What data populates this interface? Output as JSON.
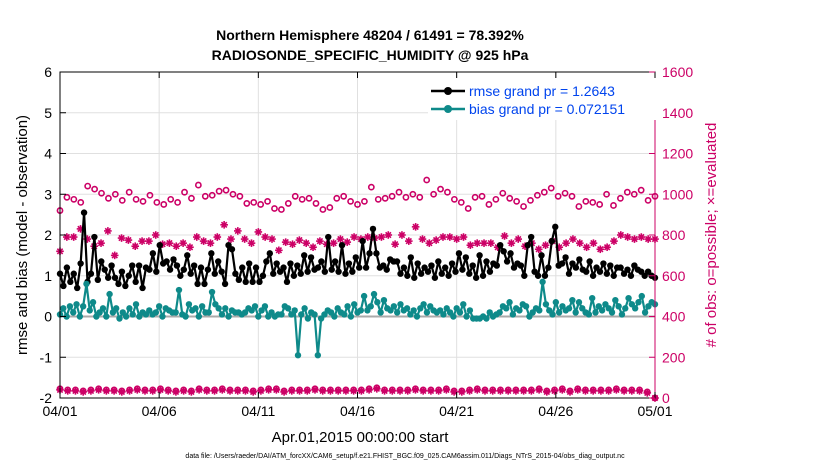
{
  "chart_data": {
    "type": "line",
    "title_line1": "Northern Hemisphere 48204 / 61491 = 78.392%",
    "title_line2": "RADIOSONDE_SPECIFIC_HUMIDITY @ 925 hPa",
    "xlabel": "Apr.01,2015 00:00:00 start",
    "ylabel": "rmse and bias (model - observation)",
    "ylabel_right": "# of obs: o=possible; ×=evaluated",
    "footer": "data file: /Users/raeder/DAI/ATM_forcXX/CAM6_setup/f.e21.FHIST_BGC.f09_025.CAM6assim.011/Diags_NTrS_2015-04/obs_diag_output.nc",
    "xlim": [
      0,
      30
    ],
    "ylim": [
      -2,
      6
    ],
    "ylim_right": [
      0,
      1600
    ],
    "x_ticks": [
      0,
      5,
      10,
      15,
      20,
      25,
      30
    ],
    "x_tick_labels": [
      "04/01",
      "04/06",
      "04/11",
      "04/16",
      "04/21",
      "04/26",
      "05/01"
    ],
    "y_ticks": [
      -2,
      -1,
      0,
      1,
      2,
      3,
      4,
      5,
      6
    ],
    "y_ticks_right": [
      0,
      200,
      400,
      600,
      800,
      1000,
      1200,
      1400,
      1600
    ],
    "colors": {
      "rmse": "#000000",
      "bias": "#0e8a8a",
      "obs": "#cc0066",
      "zero_line": "#aaaaaa",
      "legend_text": "#0044ee"
    },
    "legend_position": "top-right",
    "series": [
      {
        "name": "rmse grand pr = 1.2643",
        "axis": "left",
        "values": [
          1.05,
          0.75,
          1.2,
          0.85,
          1.05,
          0.7,
          1.3,
          2.55,
          0.85,
          1.05,
          1.95,
          0.9,
          1.35,
          1.15,
          0.95,
          1.25,
          0.95,
          0.8,
          1.1,
          0.75,
          1.0,
          1.25,
          0.85,
          1.25,
          0.7,
          1.2,
          1.15,
          1.55,
          1.1,
          1.75,
          1.3,
          1.35,
          1.15,
          1.4,
          1.25,
          1.0,
          1.15,
          1.5,
          1.05,
          1.25,
          0.8,
          1.2,
          0.8,
          1.15,
          1.55,
          1.05,
          1.35,
          1.1,
          0.8,
          1.75,
          1.65,
          1.05,
          0.9,
          1.2,
          0.85,
          1.3,
          0.85,
          1.2,
          0.85,
          1.0,
          1.35,
          1.55,
          1.05,
          1.3,
          1.1,
          1.2,
          0.85,
          1.3,
          1.0,
          1.25,
          1.05,
          1.5,
          1.1,
          1.45,
          1.15,
          1.2,
          1.35,
          1.1,
          1.95,
          1.15,
          1.35,
          1.1,
          1.75,
          1.05,
          1.3,
          1.1,
          1.45,
          1.2,
          1.85,
          1.2,
          1.55,
          2.15,
          1.55,
          1.2,
          1.25,
          1.15,
          1.4,
          1.35,
          1.35,
          1.05,
          1.2,
          1.0,
          1.45,
          0.95,
          1.3,
          1.05,
          1.2,
          1.1,
          1.25,
          0.95,
          1.35,
          1.05,
          1.2,
          1.0,
          1.3,
          1.1,
          1.55,
          1.15,
          1.45,
          1.05,
          1.25,
          0.95,
          1.5,
          1.0,
          1.35,
          1.1,
          1.3,
          1.25,
          1.75,
          1.6,
          1.35,
          1.55,
          1.2,
          1.3,
          1.25,
          1.0,
          1.75,
          1.95,
          1.1,
          1.0,
          1.5,
          1.0,
          1.2,
          1.85,
          2.2,
          1.25,
          1.3,
          1.45,
          1.05,
          1.3,
          1.2,
          1.4,
          1.15,
          1.1,
          1.35,
          1.0,
          1.2,
          1.1,
          1.3,
          1.05,
          1.25,
          1.0,
          1.2,
          1.2,
          1.05,
          1.15,
          1.0,
          1.25,
          1.15,
          1.1,
          1.0,
          1.1,
          1.0,
          0.95
        ]
      },
      {
        "name": "bias grand pr = 0.072151",
        "axis": "left",
        "values": [
          0.05,
          0.2,
          0.0,
          0.25,
          0.1,
          0.3,
          0.0,
          0.25,
          0.8,
          0.15,
          0.35,
          0.0,
          0.1,
          0.2,
          0.0,
          0.55,
          0.1,
          0.2,
          -0.05,
          0.1,
          0.0,
          0.2,
          0.05,
          0.3,
          0.0,
          0.1,
          0.05,
          0.15,
          0.05,
          0.1,
          0.25,
          0.0,
          0.2,
          0.15,
          0.1,
          0.1,
          0.65,
          0.05,
          0.0,
          0.3,
          0.15,
          0.2,
          0.0,
          0.25,
          0.1,
          0.1,
          0.6,
          0.3,
          0.2,
          0.05,
          0.2,
          0.0,
          0.15,
          0.1,
          0.1,
          0.05,
          0.1,
          0.2,
          0.15,
          0.25,
          0.0,
          0.15,
          0.25,
          0.0,
          0.1,
          0.0,
          0.05,
          0.05,
          0.25,
          0.2,
          0.05,
          0.15,
          -0.95,
          0.05,
          0.2,
          -0.05,
          0.1,
          0.05,
          -0.95,
          -0.05,
          0.05,
          0.15,
          0.1,
          0.0,
          0.2,
          0.1,
          0.05,
          0.25,
          0.0,
          0.3,
          0.1,
          0.15,
          0.5,
          0.15,
          0.25,
          0.55,
          0.35,
          0.1,
          0.4,
          0.2,
          0.15,
          0.25,
          0.1,
          0.3,
          0.15,
          0.2,
          0.05,
          0.15,
          0.0,
          0.2,
          0.3,
          0.1,
          0.25,
          0.15,
          0.1,
          0.15,
          0.05,
          0.2,
          0.1,
          0.0,
          0.2,
          0.1,
          0.3,
          0.0,
          0.15,
          -0.05,
          -0.05,
          -0.05,
          0.0,
          -0.05,
          0.1,
          0.0,
          0.05,
          0.1,
          0.25,
          0.2,
          0.35,
          0.05,
          0.2,
          0.15,
          0.3,
          0.25,
          0.0,
          0.1,
          0.2,
          0.15,
          0.85,
          0.3,
          0.15,
          0.05,
          0.35,
          0.1,
          0.25,
          0.15,
          0.2,
          0.4,
          0.1,
          0.35,
          0.2,
          0.1,
          0.05,
          0.45,
          0.1,
          0.25,
          0.15,
          0.3,
          0.2,
          0.1,
          0.4,
          0.25,
          0.05,
          0.2,
          0.45,
          0.3,
          0.2,
          0.35,
          0.5,
          0.1,
          0.25,
          0.35,
          0.3
        ]
      },
      {
        "name": "possible",
        "axis": "right",
        "marker": "o",
        "values": [
          920,
          985,
          975,
          960,
          1040,
          1025,
          1005,
          980,
          1000,
          970,
          1010,
          975,
          965,
          995,
          960,
          950,
          975,
          960,
          1010,
          980,
          1045,
          990,
          995,
          1015,
          1020,
          1000,
          990,
          955,
          960,
          950,
          965,
          930,
          925,
          955,
          990,
          975,
          980,
          955,
          925,
          935,
          980,
          990,
          965,
          950,
          965,
          1035,
          975,
          980,
          990,
          1010,
          985,
          1000,
          985,
          1070,
          1000,
          1025,
          1010,
          975,
          960,
          930,
          985,
          990,
          950,
          975,
          1005,
          980,
          965,
          940,
          970,
          995,
          1010,
          1030,
          990,
          1005,
          990,
          940,
          965,
          960,
          950,
          1000,
          945,
          980,
          1010,
          1000,
          1020,
          970,
          990
        ]
      },
      {
        "name": "evaluated",
        "axis": "right",
        "marker": "x",
        "values": [
          720,
          790,
          790,
          830,
          780,
          745,
          760,
          820,
          700,
          785,
          775,
          745,
          770,
          770,
          800,
          755,
          760,
          745,
          760,
          740,
          790,
          770,
          760,
          790,
          850,
          780,
          820,
          780,
          760,
          815,
          790,
          780,
          725,
          765,
          755,
          775,
          760,
          740,
          770,
          755,
          760,
          780,
          765,
          790,
          780,
          790,
          785,
          790,
          800,
          755,
          800,
          770,
          840,
          780,
          760,
          775,
          790,
          790,
          780,
          790,
          750,
          760,
          760,
          760,
          740,
          795,
          760,
          780,
          745,
          760,
          730,
          750,
          770,
          740,
          760,
          780,
          760,
          740,
          760,
          730,
          740,
          770,
          800,
          790,
          780,
          790,
          780,
          780
        ]
      },
      {
        "name": "possible-low",
        "axis": "right",
        "marker": "o",
        "values": [
          45,
          40,
          40,
          35,
          40,
          45,
          40,
          40,
          35,
          40,
          45,
          40,
          40,
          45,
          40,
          35,
          40,
          35,
          45,
          40,
          40,
          45,
          40,
          40,
          40,
          35,
          40,
          45,
          45,
          35,
          40,
          40,
          40,
          45,
          40,
          40,
          40,
          40,
          40,
          40,
          45,
          50,
          40,
          40,
          40,
          40,
          45,
          40,
          40,
          40,
          45,
          35,
          35,
          40,
          45,
          40,
          40,
          40,
          40,
          40,
          40,
          40,
          45,
          35,
          40,
          45,
          35,
          45,
          40,
          40,
          40,
          40,
          45,
          40,
          40,
          40,
          30,
          0
        ]
      },
      {
        "name": "evaluated-low",
        "axis": "right",
        "marker": "x",
        "values": [
          40,
          35,
          35,
          30,
          35,
          40,
          35,
          35,
          30,
          35,
          40,
          35,
          35,
          40,
          35,
          30,
          35,
          30,
          40,
          35,
          35,
          40,
          35,
          35,
          35,
          30,
          35,
          40,
          40,
          30,
          35,
          35,
          35,
          40,
          35,
          35,
          35,
          35,
          35,
          35,
          40,
          45,
          35,
          35,
          35,
          35,
          40,
          35,
          35,
          35,
          40,
          30,
          30,
          35,
          40,
          35,
          35,
          35,
          35,
          35,
          35,
          35,
          40,
          30,
          35,
          40,
          30,
          40,
          35,
          35,
          35,
          35,
          40,
          35,
          35,
          35,
          25,
          0
        ]
      }
    ]
  }
}
